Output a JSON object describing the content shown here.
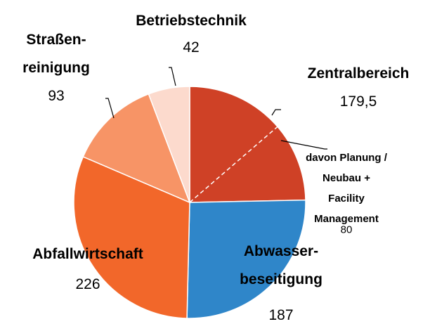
{
  "chart_data": {
    "type": "pie",
    "categories": [
      "Zentralbereich",
      "Abwasser-\nbeseitigung",
      "Abfallwirtschaft",
      "Straßen-\nreinigung",
      "Betriebstechnik"
    ],
    "values": [
      179.5,
      187,
      226,
      93,
      42
    ],
    "value_labels": [
      "179,5",
      "187",
      "226",
      "93",
      "42"
    ],
    "colors": [
      "#cf4126",
      "#2f86c9",
      "#f2672a",
      "#f79466",
      "#fcdacd"
    ],
    "sub": {
      "label": "davon Planung /\nNeubau + Facility\nManagement",
      "value": 80
    }
  }
}
